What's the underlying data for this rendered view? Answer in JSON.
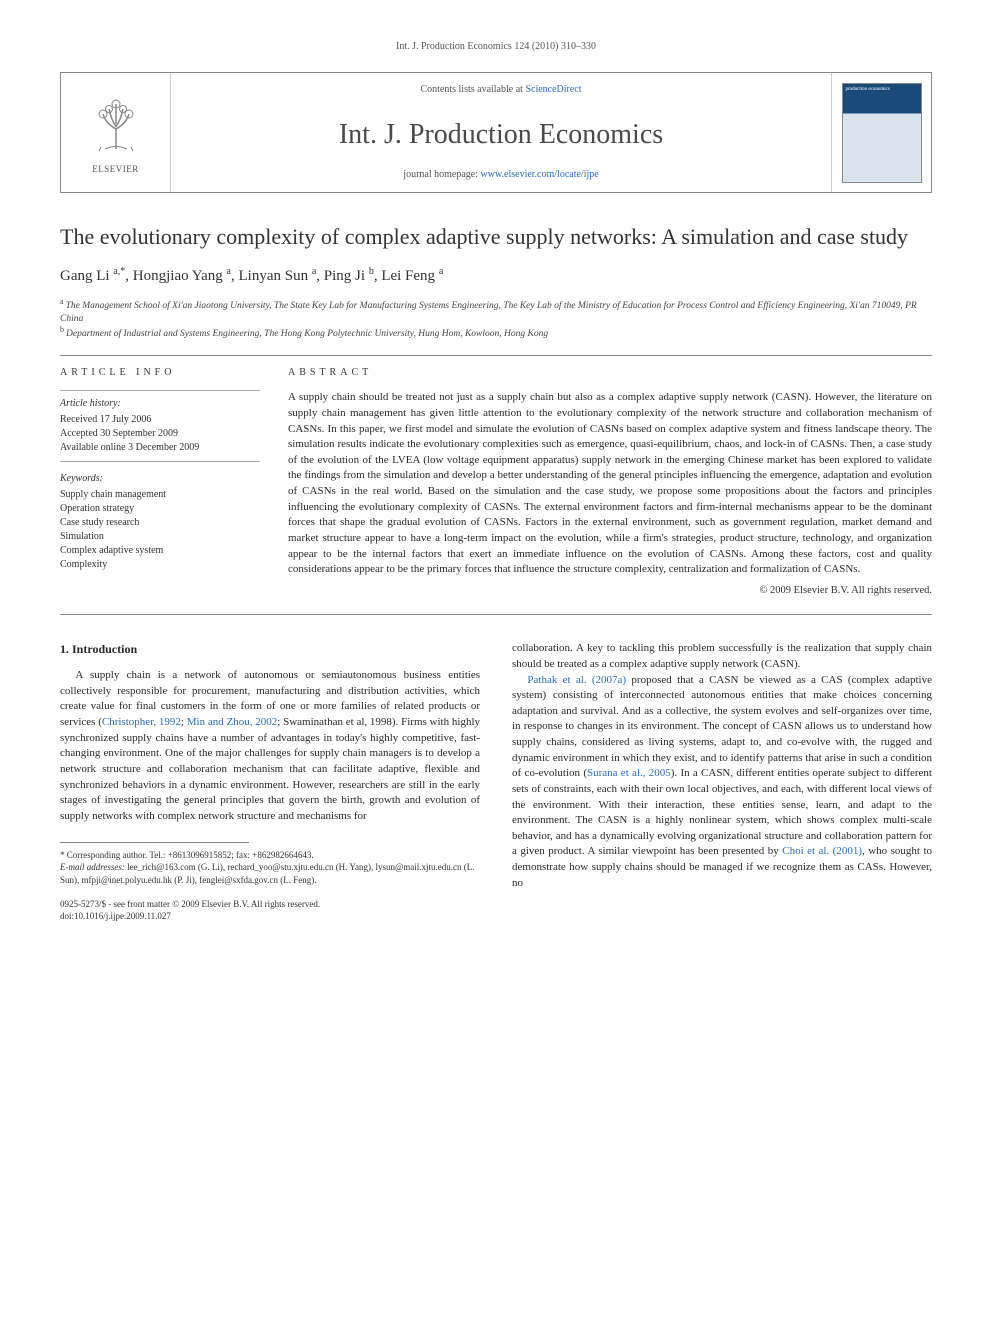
{
  "running_head": "Int. J. Production Economics 124 (2010) 310–330",
  "masthead": {
    "contents_prefix": "Contents lists available at ",
    "contents_link": "ScienceDirect",
    "journal": "Int. J. Production Economics",
    "homepage_prefix": "journal homepage: ",
    "homepage_link": "www.elsevier.com/locate/ijpe",
    "publisher": "ELSEVIER",
    "cover_text": "production economics"
  },
  "title": "The evolutionary complexity of complex adaptive supply networks: A simulation and case study",
  "authors_html": "Gang Li <sup>a,*</sup>, Hongjiao Yang <sup>a</sup>, Linyan Sun <sup>a</sup>, Ping Ji <sup>b</sup>, Lei Feng <sup>a</sup>",
  "authors": [
    {
      "name": "Gang Li",
      "marks": "a,*"
    },
    {
      "name": "Hongjiao Yang",
      "marks": "a"
    },
    {
      "name": "Linyan Sun",
      "marks": "a"
    },
    {
      "name": "Ping Ji",
      "marks": "b"
    },
    {
      "name": "Lei Feng",
      "marks": "a"
    }
  ],
  "affiliations": [
    {
      "mark": "a",
      "text": "The Management School of Xi'an Jiaotong University, The State Key Lab for Manufacturing Systems Engineering, The Key Lab of the Ministry of Education for Process Control and Efficiency Engineering, Xi'an 710049, PR China"
    },
    {
      "mark": "b",
      "text": "Department of Industrial and Systems Engineering, The Hong Kong Polytechnic University, Hung Hom, Kowloon, Hong Kong"
    }
  ],
  "article_info": {
    "head": "ARTICLE INFO",
    "history_label": "Article history:",
    "history": [
      "Received 17 July 2006",
      "Accepted 30 September 2009",
      "Available online 3 December 2009"
    ],
    "keywords_label": "Keywords:",
    "keywords": [
      "Supply chain management",
      "Operation strategy",
      "Case study research",
      "Simulation",
      "Complex adaptive system",
      "Complexity"
    ]
  },
  "abstract": {
    "head": "ABSTRACT",
    "text": "A supply chain should be treated not just as a supply chain but also as a complex adaptive supply network (CASN). However, the literature on supply chain management has given little attention to the evolutionary complexity of the network structure and collaboration mechanism of CASNs. In this paper, we first model and simulate the evolution of CASNs based on complex adaptive system and fitness landscape theory. The simulation results indicate the evolutionary complexities such as emergence, quasi-equilibrium, chaos, and lock-in of CASNs. Then, a case study of the evolution of the LVEA (low voltage equipment apparatus) supply network in the emerging Chinese market has been explored to validate the findings from the simulation and develop a better understanding of the general principles influencing the emergence, adaptation and evolution of CASNs in the real world. Based on the simulation and the case study, we propose some propositions about the factors and principles influencing the evolutionary complexity of CASNs. The external environment factors and firm-internal mechanisms appear to be the dominant forces that shape the gradual evolution of CASNs. Factors in the external environment, such as government regulation, market demand and market structure appear to have a long-term impact on the evolution, while a firm's strategies, product structure, technology, and organization appear to be the internal factors that exert an immediate influence on the evolution of CASNs. Among these factors, cost and quality considerations appear to be the primary forces that influence the structure complexity, centralization and formalization of CASNs.",
    "copyright": "© 2009 Elsevier B.V. All rights reserved."
  },
  "body": {
    "sec1_head": "1. Introduction",
    "col1_p1_pre": "A supply chain is a network of autonomous or semiautonomous business entities collectively responsible for procurement, manufacturing and distribution activities, which create value for final customers in the form of one or more families of related products or services (",
    "col1_p1_link1": "Christopher, 1992",
    "col1_p1_mid1": "; ",
    "col1_p1_link2": "Min and Zhou, 2002",
    "col1_p1_post": "; Swaminathan et al, 1998). Firms with highly synchronized supply chains have a number of advantages in today's highly competitive, fast-changing environment. One of the major challenges for supply chain managers is to develop a network structure and collaboration mechanism that can facilitate adaptive, flexible and synchronized behaviors in a dynamic environment. However, researchers are still in the early stages of investigating the general principles that govern the birth, growth and evolution of supply networks with complex network structure and mechanisms for",
    "col2_p0": "collaboration. A key to tackling this problem successfully is the realization that supply chain should be treated as a complex adaptive supply network (CASN).",
    "col2_p1_link1": "Pathak et al. (2007a)",
    "col2_p1_a": " proposed that a CASN be viewed as a CAS (complex adaptive system) consisting of interconnected autonomous entities that make choices concerning adaptation and survival. And as a collective, the system evolves and self-organizes over time, in response to changes in its environment. The concept of CASN allows us to understand how supply chains, considered as living systems, adapt to, and co-evolve with, the rugged and dynamic environment in which they exist, and to identify patterns that arise in such a condition of co-evolution (",
    "col2_p1_link2": "Surana et al., 2005",
    "col2_p1_b": "). In a CASN, different entities operate subject to different sets of constraints, each with their own local objectives, and each, with different local views of the environment. With their interaction, these entities sense, learn, and adapt to the environment. The CASN is a highly nonlinear system, which shows complex multi-scale behavior, and has a dynamically evolving organizational structure and collaboration pattern for a given product. A similar viewpoint has been presented by ",
    "col2_p1_link3": "Choi et al. (2001)",
    "col2_p1_c": ", who sought to demonstrate how supply chains should be managed if we recognize them as CASs. However, no"
  },
  "footnote": {
    "corr": "* Corresponding author. Tel.: +8613096915852; fax: +862982664643.",
    "emails_label": "E-mail addresses: ",
    "emails": "lee_rich@163.com (G. Li), rechard_yoo@stu.xjtu.edu.cn (H. Yang), lysun@mail.xjtu.edu.cn (L. Sun), mfpji@inet.polyu.edu.hk (P. Ji), fenglei@sxfda.gov.cn (L. Feng)."
  },
  "footer": {
    "line1": "0925-5273/$ - see front matter © 2009 Elsevier B.V. All rights reserved.",
    "line2": "doi:10.1016/j.ijpe.2009.11.027"
  },
  "colors": {
    "link": "#2a6db5",
    "text": "#2a2a2a",
    "rule": "#888888"
  }
}
